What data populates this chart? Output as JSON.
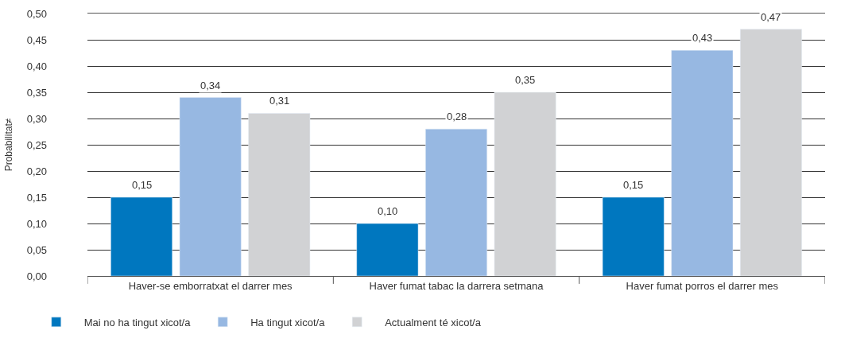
{
  "chart_data": {
    "type": "bar",
    "ylabel": "Probabilitat≠",
    "categories": [
      "Haver-se emborratxat el darrer mes",
      "Haver fumat tabac la darrera setmana",
      "Haver fumat porros el darrer mes"
    ],
    "series": [
      {
        "name": "Mai no ha tingut xicot/a",
        "color": "#0077bf",
        "values": [
          0.15,
          0.1,
          0.15
        ],
        "value_labels": [
          "0,15",
          "0,10",
          "0,15"
        ]
      },
      {
        "name": "Ha tingut xicot/a",
        "color": "#97b8e2",
        "values": [
          0.34,
          0.28,
          0.43
        ],
        "value_labels": [
          "0,34",
          "0,28",
          "0,43"
        ]
      },
      {
        "name": "Actualment té xicot/a",
        "color": "#d1d2d4",
        "values": [
          0.31,
          0.35,
          0.47
        ],
        "value_labels": [
          "0,31",
          "0,35",
          "0,47"
        ]
      }
    ],
    "ylim": [
      0,
      0.5
    ],
    "yticks": [
      {
        "value": 0,
        "label": "0,00"
      },
      {
        "value": 0.05,
        "label": "0,05"
      },
      {
        "value": 0.1,
        "label": "0,10"
      },
      {
        "value": 0.15,
        "label": "0,15"
      },
      {
        "value": 0.2,
        "label": "0,20"
      },
      {
        "value": 0.25,
        "label": "0,25"
      },
      {
        "value": 0.3,
        "label": "0,30"
      },
      {
        "value": 0.35,
        "label": "0,35"
      },
      {
        "value": 0.4,
        "label": "0,40"
      },
      {
        "value": 0.45,
        "label": "0,45"
      },
      {
        "value": 0.5,
        "label": "0,50"
      }
    ],
    "grid": "y",
    "legend": "bottom left"
  }
}
